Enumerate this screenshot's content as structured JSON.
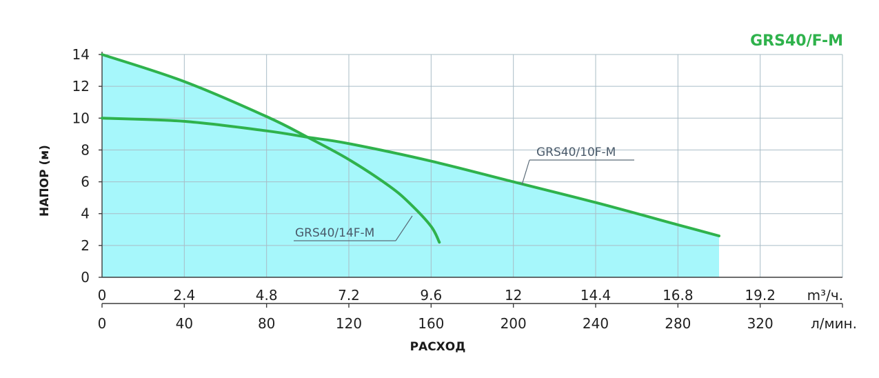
{
  "chart_data": {
    "type": "line",
    "title": "GRS40/F-M",
    "ylabel": "НАПОР (м)",
    "xlabel": "РАСХОД",
    "ylim": [
      0,
      14
    ],
    "y_ticks": [
      "0",
      "2",
      "4",
      "6",
      "8",
      "10",
      "12",
      "14"
    ],
    "x_axis_primary": {
      "unit": "m³/ч.",
      "range": [
        0,
        21.6
      ],
      "ticks": [
        "0",
        "2.4",
        "4.8",
        "7.2",
        "9.6",
        "12",
        "14.4",
        "16.8",
        "19.2"
      ]
    },
    "x_axis_secondary": {
      "unit": "л/мин.",
      "range": [
        0,
        360
      ],
      "ticks": [
        "0",
        "40",
        "80",
        "120",
        "160",
        "200",
        "240",
        "280",
        "320"
      ]
    },
    "grid": true,
    "fill_color": "#a6f7fb",
    "line_color": "#2fb24c",
    "series": [
      {
        "name": "GRS40/14F-M",
        "x": [
          0,
          2.4,
          4.8,
          6.0,
          7.2,
          8.4,
          9.0,
          9.6,
          9.84
        ],
        "y": [
          14,
          12.3,
          10.1,
          8.8,
          7.4,
          5.7,
          4.6,
          3.2,
          2.2
        ]
      },
      {
        "name": "GRS40/10F-M",
        "x": [
          0,
          2.4,
          4.8,
          6.0,
          7.2,
          9.6,
          12,
          14.4,
          16.8,
          18.0
        ],
        "y": [
          10,
          9.8,
          9.2,
          8.8,
          8.4,
          7.3,
          6.0,
          4.7,
          3.3,
          2.6
        ]
      }
    ]
  }
}
